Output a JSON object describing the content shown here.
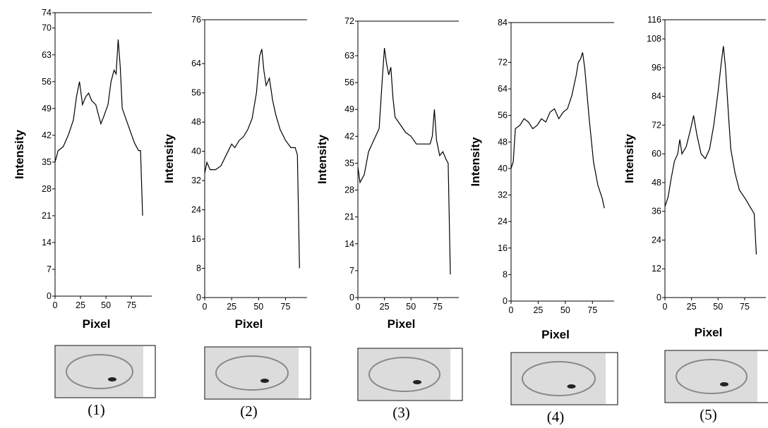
{
  "chart_data": [
    {
      "type": "line",
      "ylabel": "Intensity",
      "xlabel": "Pixel",
      "caption": "(1)",
      "color": "#000000",
      "x": [
        0,
        3,
        8,
        13,
        18,
        21,
        24,
        27,
        30,
        33,
        36,
        40,
        43,
        45,
        48,
        52,
        55,
        58,
        60,
        62,
        64,
        66,
        70,
        74,
        78,
        82,
        84,
        86
      ],
      "values": [
        35,
        38,
        39,
        42,
        46,
        52,
        56,
        50,
        52,
        53,
        51,
        50,
        47,
        45,
        47,
        50,
        56,
        59,
        58,
        67,
        60,
        49,
        46,
        43,
        40,
        38,
        38,
        21
      ],
      "xlim": [
        0,
        95
      ],
      "ylim": [
        0,
        74
      ],
      "xticks": [
        0,
        25,
        50,
        75
      ],
      "yticks": [
        0,
        7,
        14,
        21,
        28,
        35,
        42,
        49,
        56,
        63,
        70,
        74
      ]
    },
    {
      "type": "line",
      "ylabel": "Intensity",
      "xlabel": "Pixel",
      "caption": "(2)",
      "color": "#000000",
      "x": [
        0,
        2,
        5,
        10,
        15,
        20,
        25,
        28,
        32,
        36,
        40,
        44,
        48,
        51,
        53,
        55,
        57,
        60,
        63,
        66,
        70,
        75,
        80,
        84,
        86,
        88
      ],
      "values": [
        34,
        37,
        35,
        35,
        36,
        39,
        42,
        41,
        43,
        44,
        46,
        49,
        56,
        66,
        68,
        62,
        58,
        60,
        54,
        50,
        46,
        43,
        41,
        41,
        39,
        8
      ],
      "xlim": [
        0,
        95
      ],
      "ylim": [
        0,
        76
      ],
      "xticks": [
        0,
        25,
        50,
        75
      ],
      "yticks": [
        0,
        8,
        16,
        24,
        32,
        40,
        48,
        56,
        64,
        76
      ]
    },
    {
      "type": "line",
      "ylabel": "Intensity",
      "xlabel": "Pixel",
      "caption": "(3)",
      "color": "#000000",
      "x": [
        0,
        2,
        6,
        10,
        15,
        20,
        23,
        25,
        27,
        29,
        31,
        33,
        35,
        40,
        45,
        50,
        55,
        60,
        68,
        70,
        72,
        74,
        77,
        80,
        83,
        85,
        87
      ],
      "values": [
        34,
        30,
        32,
        38,
        41,
        44,
        57,
        65,
        61,
        58,
        60,
        52,
        47,
        45,
        43,
        42,
        40,
        40,
        40,
        42,
        49,
        41,
        37,
        38,
        36,
        35,
        6
      ],
      "xlim": [
        0,
        95
      ],
      "ylim": [
        0,
        72
      ],
      "xticks": [
        0,
        25,
        50,
        75
      ],
      "yticks": [
        0,
        7,
        14,
        21,
        28,
        35,
        42,
        49,
        56,
        63,
        72
      ]
    },
    {
      "type": "line",
      "ylabel": "Intensity",
      "xlabel": "Pixel",
      "caption": "(4)",
      "color": "#000000",
      "x": [
        0,
        2,
        4,
        8,
        12,
        16,
        20,
        24,
        28,
        32,
        36,
        40,
        44,
        48,
        52,
        56,
        60,
        62,
        64,
        66,
        68,
        72,
        76,
        80,
        84,
        86
      ],
      "values": [
        40,
        42,
        52,
        53,
        55,
        54,
        52,
        53,
        55,
        54,
        57,
        58,
        55,
        57,
        58,
        62,
        68,
        72,
        73,
        75,
        70,
        55,
        42,
        35,
        31,
        28
      ],
      "xlim": [
        0,
        95
      ],
      "ylim": [
        0,
        84
      ],
      "xticks": [
        0,
        25,
        50,
        75
      ],
      "yticks": [
        0,
        8,
        16,
        24,
        32,
        40,
        48,
        56,
        64,
        72,
        84
      ]
    },
    {
      "type": "line",
      "ylabel": "Intensity",
      "xlabel": "Pixel",
      "caption": "(5)",
      "color": "#000000",
      "x": [
        0,
        3,
        6,
        9,
        12,
        14,
        16,
        20,
        24,
        27,
        30,
        34,
        38,
        42,
        46,
        50,
        53,
        55,
        57,
        60,
        62,
        66,
        70,
        76,
        80,
        84,
        86
      ],
      "values": [
        38,
        42,
        50,
        57,
        60,
        66,
        60,
        63,
        70,
        76,
        68,
        60,
        58,
        62,
        72,
        86,
        98,
        105,
        96,
        75,
        62,
        52,
        45,
        41,
        38,
        35,
        18
      ],
      "xlim": [
        0,
        95
      ],
      "ylim": [
        0,
        116
      ],
      "xticks": [
        0,
        25,
        50,
        75
      ],
      "yticks": [
        0,
        12,
        24,
        36,
        48,
        60,
        72,
        84,
        96,
        108,
        116
      ]
    }
  ]
}
